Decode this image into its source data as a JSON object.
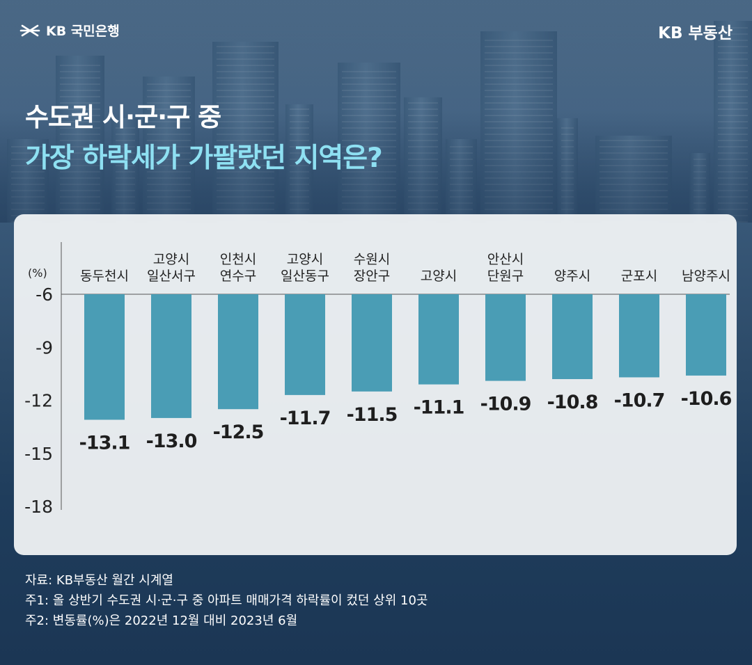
{
  "brand": {
    "left_logo": "KB 국민은행",
    "right_logo": "KB 부동산",
    "accent": "#8ee0f2"
  },
  "title": {
    "line1": "수도권 시·군·구 중",
    "line2": "가장 하락세가 가팔랐던 지역은?"
  },
  "chart_data": {
    "type": "bar",
    "unit_label": "(%)",
    "categories": [
      [
        "동두천시"
      ],
      [
        "고양시",
        "일산서구"
      ],
      [
        "인천시",
        "연수구"
      ],
      [
        "고양시",
        "일산동구"
      ],
      [
        "수원시",
        "장안구"
      ],
      [
        "고양시"
      ],
      [
        "안산시",
        "단원구"
      ],
      [
        "양주시"
      ],
      [
        "군포시"
      ],
      [
        "남양주시"
      ]
    ],
    "values": [
      -13.1,
      -13.0,
      -12.5,
      -11.7,
      -11.5,
      -11.1,
      -10.9,
      -10.8,
      -10.7,
      -10.6
    ],
    "value_labels": [
      "-13.1",
      "-13.0",
      "-12.5",
      "-11.7",
      "-11.5",
      "-11.1",
      "-10.9",
      "-10.8",
      "-10.7",
      "-10.6"
    ],
    "ylim": [
      -18,
      -6
    ],
    "yticks": [
      -6,
      -9,
      -12,
      -15,
      -18
    ],
    "ytick_labels": [
      "-6",
      "-9",
      "-12",
      "-15",
      "-18"
    ],
    "bar_color": "#4a9db5",
    "grid": false
  },
  "notes": [
    "자료: KB부동산 월간 시계열",
    "주1: 올 상반기 수도권 시·군·구 중 아파트 매매가격 하락률이 컸던 상위 10곳",
    "주2: 변동률(%)은 2022년 12월 대비 2023년 6월"
  ]
}
